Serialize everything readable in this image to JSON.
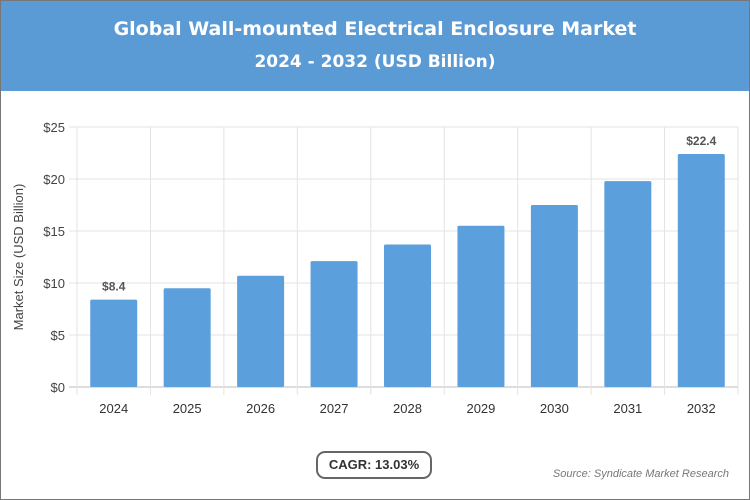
{
  "header": {
    "title": "Global Wall-mounted Electrical Enclosure Market",
    "subtitle": "2024 - 2032 (USD Billion)"
  },
  "chart_data": {
    "type": "bar",
    "categories": [
      "2024",
      "2025",
      "2026",
      "2027",
      "2028",
      "2029",
      "2030",
      "2031",
      "2032"
    ],
    "values": [
      8.4,
      9.5,
      10.7,
      12.1,
      13.7,
      15.5,
      17.5,
      19.8,
      22.4
    ],
    "data_labels": {
      "0": "$8.4",
      "8": "$22.4"
    },
    "ylabel": "Market Size (USD Billion)",
    "xlabel": "",
    "ylim": [
      0,
      25
    ],
    "yticks": [
      "$0",
      "$5",
      "$10",
      "$15",
      "$20",
      "$25"
    ],
    "grid": true,
    "bar_color": "#5b9fdc"
  },
  "footer": {
    "cagr": "CAGR: 13.03%",
    "source": "Source: Syndicate Market Research"
  }
}
